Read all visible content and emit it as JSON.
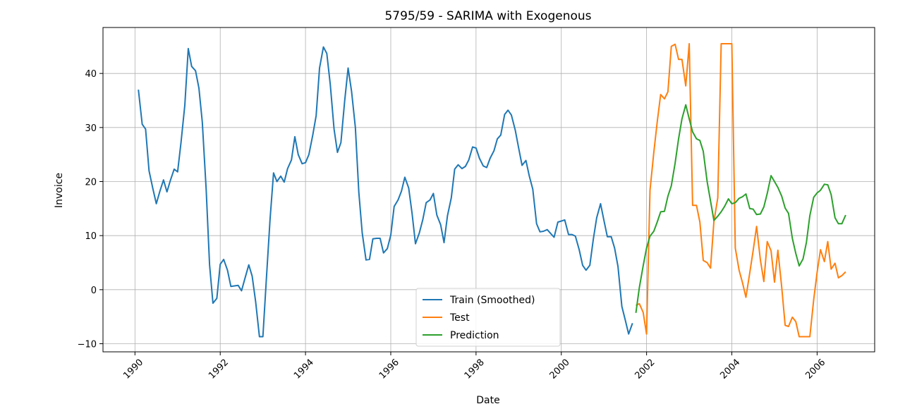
{
  "chart_data": {
    "type": "line",
    "title": "5795/59 - SARIMA with Exogenous",
    "xlabel": "Date",
    "ylabel": "Invoice",
    "xlim": [
      1989.25,
      2007.35
    ],
    "ylim": [
      -11.5,
      48.5
    ],
    "x_ticks": [
      1990,
      1992,
      1994,
      1996,
      1998,
      2000,
      2002,
      2004,
      2006
    ],
    "x_tick_labels": [
      "1990",
      "1992",
      "1994",
      "1996",
      "1998",
      "2000",
      "2002",
      "2004",
      "2006"
    ],
    "y_ticks": [
      -10,
      0,
      10,
      20,
      30,
      40
    ],
    "y_tick_labels": [
      "−10",
      "0",
      "10",
      "20",
      "30",
      "40"
    ],
    "grid": true,
    "legend_position": "bottom-center",
    "series": [
      {
        "name": "Train (Smoothed)",
        "color": "#1f77b4",
        "x": [
          1990.08,
          1990.17,
          1990.25,
          1990.33,
          1990.42,
          1990.5,
          1990.58,
          1990.67,
          1990.75,
          1990.83,
          1990.92,
          1991.0,
          1991.08,
          1991.17,
          1991.25,
          1991.33,
          1991.42,
          1991.5,
          1991.58,
          1991.67,
          1991.75,
          1991.83,
          1991.92,
          1992.0,
          1992.08,
          1992.17,
          1992.25,
          1992.33,
          1992.42,
          1992.5,
          1992.58,
          1992.67,
          1992.75,
          1992.83,
          1992.92,
          1993.0,
          1993.08,
          1993.17,
          1993.25,
          1993.33,
          1993.42,
          1993.5,
          1993.58,
          1993.67,
          1993.75,
          1993.83,
          1993.92,
          1994.0,
          1994.08,
          1994.17,
          1994.25,
          1994.33,
          1994.42,
          1994.5,
          1994.58,
          1994.67,
          1994.75,
          1994.83,
          1994.92,
          1995.0,
          1995.08,
          1995.17,
          1995.25,
          1995.33,
          1995.42,
          1995.5,
          1995.58,
          1995.67,
          1995.75,
          1995.83,
          1995.92,
          1996.0,
          1996.08,
          1996.17,
          1996.25,
          1996.33,
          1996.42,
          1996.5,
          1996.58,
          1996.67,
          1996.75,
          1996.83,
          1996.92,
          1997.0,
          1997.08,
          1997.17,
          1997.25,
          1997.33,
          1997.42,
          1997.5,
          1997.58,
          1997.67,
          1997.75,
          1997.83,
          1997.92,
          1998.0,
          1998.08,
          1998.17,
          1998.25,
          1998.33,
          1998.42,
          1998.5,
          1998.58,
          1998.67,
          1998.75,
          1998.83,
          1998.92,
          1999.0,
          1999.08,
          1999.17,
          1999.25,
          1999.33,
          1999.42,
          1999.5,
          1999.58,
          1999.67,
          1999.75,
          1999.83,
          1999.92,
          2000.0,
          2000.08,
          2000.17,
          2000.25,
          2000.33,
          2000.42,
          2000.5,
          2000.58,
          2000.67,
          2000.75,
          2000.83,
          2000.92,
          2001.0,
          2001.08,
          2001.17,
          2001.25,
          2001.33,
          2001.42,
          2001.5,
          2001.58,
          2001.67
        ],
        "values": [
          37.0,
          30.6,
          29.7,
          22.0,
          18.7,
          15.9,
          18.1,
          20.3,
          18.1,
          20.2,
          22.3,
          21.8,
          27.2,
          34.1,
          44.6,
          41.3,
          40.5,
          37.3,
          31.0,
          18.5,
          4.6,
          -2.5,
          -1.6,
          4.7,
          5.6,
          3.6,
          0.6,
          0.7,
          0.8,
          -0.2,
          2.1,
          4.6,
          2.5,
          -2.2,
          -8.7,
          -8.7,
          1.7,
          13.1,
          21.6,
          20.0,
          21.0,
          19.9,
          22.4,
          24.0,
          28.3,
          25.0,
          23.3,
          23.5,
          25.0,
          28.6,
          32.2,
          41.0,
          44.9,
          43.7,
          38.0,
          29.7,
          25.4,
          27.2,
          35.0,
          41.0,
          36.7,
          30.0,
          18.0,
          10.5,
          5.5,
          5.6,
          9.4,
          9.5,
          9.5,
          6.8,
          7.6,
          10.1,
          15.4,
          16.6,
          18.2,
          20.8,
          18.8,
          14.1,
          8.5,
          10.5,
          12.9,
          16.1,
          16.6,
          17.8,
          13.8,
          12.0,
          8.7,
          13.7,
          17.0,
          22.3,
          23.1,
          22.4,
          22.8,
          24.0,
          26.4,
          26.2,
          24.3,
          22.9,
          22.6,
          24.3,
          25.7,
          27.9,
          28.6,
          32.4,
          33.2,
          32.3,
          29.5,
          26.2,
          23.0,
          23.9,
          21.0,
          18.6,
          12.2,
          10.7,
          10.8,
          11.1,
          10.4,
          9.7,
          12.5,
          12.7,
          12.9,
          10.2,
          10.2,
          9.9,
          7.4,
          4.5,
          3.6,
          4.5,
          9.3,
          13.3,
          15.9,
          12.8,
          9.8,
          9.8,
          7.7,
          4.3,
          -3.1,
          -5.6,
          -8.2,
          -6.2
        ]
      },
      {
        "name": "Test",
        "color": "#ff7f0e",
        "x": [
          2001.75,
          2001.83,
          2001.92,
          2002.0,
          2002.08,
          2002.17,
          2002.25,
          2002.33,
          2002.42,
          2002.5,
          2002.58,
          2002.67,
          2002.75,
          2002.83,
          2002.92,
          2003.0,
          2003.08,
          2003.17,
          2003.25,
          2003.33,
          2003.42,
          2003.5,
          2003.58,
          2003.67,
          2003.75,
          2003.83,
          2003.92,
          2004.0,
          2004.08,
          2004.17,
          2004.25,
          2004.33,
          2004.42,
          2004.5,
          2004.58,
          2004.67,
          2004.75,
          2004.83,
          2004.92,
          2005.0,
          2005.08,
          2005.17,
          2005.25,
          2005.33,
          2005.42,
          2005.5,
          2005.58,
          2005.67,
          2005.75,
          2005.83,
          2005.92,
          2006.0,
          2006.08,
          2006.17,
          2006.25,
          2006.33,
          2006.42,
          2006.5,
          2006.58,
          2006.67
        ],
        "values": [
          -2.9,
          -2.6,
          -4.2,
          -8.2,
          18.4,
          25.4,
          31.0,
          36.1,
          35.3,
          36.6,
          45.0,
          45.4,
          42.6,
          42.6,
          37.7,
          45.5,
          15.6,
          15.6,
          12.5,
          5.4,
          5.0,
          4.0,
          12.6,
          17.0,
          45.5,
          45.5,
          45.5,
          45.5,
          7.7,
          3.6,
          1.3,
          -1.4,
          3.1,
          7.2,
          11.7,
          5.5,
          1.5,
          8.9,
          7.2,
          1.4,
          7.3,
          0.5,
          -6.6,
          -6.8,
          -5.1,
          -5.9,
          -8.7,
          -8.7,
          -8.7,
          -8.7,
          -1.8,
          3.2,
          7.4,
          5.2,
          8.9,
          3.8,
          4.9,
          2.2,
          2.6,
          3.3
        ]
      },
      {
        "name": "Prediction",
        "color": "#2ca02c",
        "x": [
          2001.75,
          2001.83,
          2001.92,
          2002.0,
          2002.08,
          2002.17,
          2002.25,
          2002.33,
          2002.42,
          2002.5,
          2002.58,
          2002.67,
          2002.75,
          2002.83,
          2002.92,
          2003.0,
          2003.08,
          2003.17,
          2003.25,
          2003.33,
          2003.42,
          2003.5,
          2003.58,
          2003.67,
          2003.75,
          2003.83,
          2003.92,
          2004.0,
          2004.08,
          2004.17,
          2004.25,
          2004.33,
          2004.42,
          2004.5,
          2004.58,
          2004.67,
          2004.75,
          2004.83,
          2004.92,
          2005.0,
          2005.08,
          2005.17,
          2005.25,
          2005.33,
          2005.42,
          2005.5,
          2005.58,
          2005.67,
          2005.75,
          2005.83,
          2005.92,
          2006.0,
          2006.08,
          2006.17,
          2006.25,
          2006.33,
          2006.42,
          2006.5,
          2006.58,
          2006.67
        ],
        "values": [
          -4.3,
          0.4,
          4.4,
          7.7,
          9.9,
          10.8,
          12.5,
          14.4,
          14.5,
          17.3,
          19.2,
          23.4,
          27.9,
          31.6,
          34.2,
          31.6,
          29.2,
          27.9,
          27.6,
          25.6,
          20.0,
          16.4,
          12.8,
          13.6,
          14.4,
          15.4,
          16.8,
          15.9,
          16.1,
          16.9,
          17.2,
          17.7,
          15.0,
          14.9,
          13.9,
          14.0,
          15.3,
          17.8,
          21.1,
          20.0,
          18.9,
          17.3,
          15.1,
          14.1,
          9.5,
          6.7,
          4.4,
          5.7,
          8.8,
          13.7,
          17.1,
          17.9,
          18.4,
          19.5,
          19.4,
          17.6,
          13.3,
          12.2,
          12.2,
          13.8
        ]
      }
    ]
  }
}
